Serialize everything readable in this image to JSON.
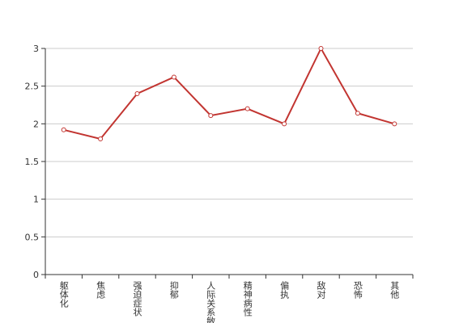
{
  "chart_data": {
    "type": "line",
    "categories": [
      "躯体化",
      "焦虑",
      "强迫症状",
      "抑郁",
      "人际关系敏感",
      "精神病性",
      "偏执",
      "敌对",
      "恐怖",
      "其他"
    ],
    "values": [
      1.92,
      1.8,
      2.4,
      2.62,
      2.11,
      2.2,
      2.0,
      3.0,
      2.14,
      2.0
    ],
    "color": "#c23531",
    "ylim": [
      0,
      3
    ],
    "yticks": [
      0,
      0.5,
      1,
      1.5,
      2,
      2.5,
      3
    ],
    "grid": true
  }
}
